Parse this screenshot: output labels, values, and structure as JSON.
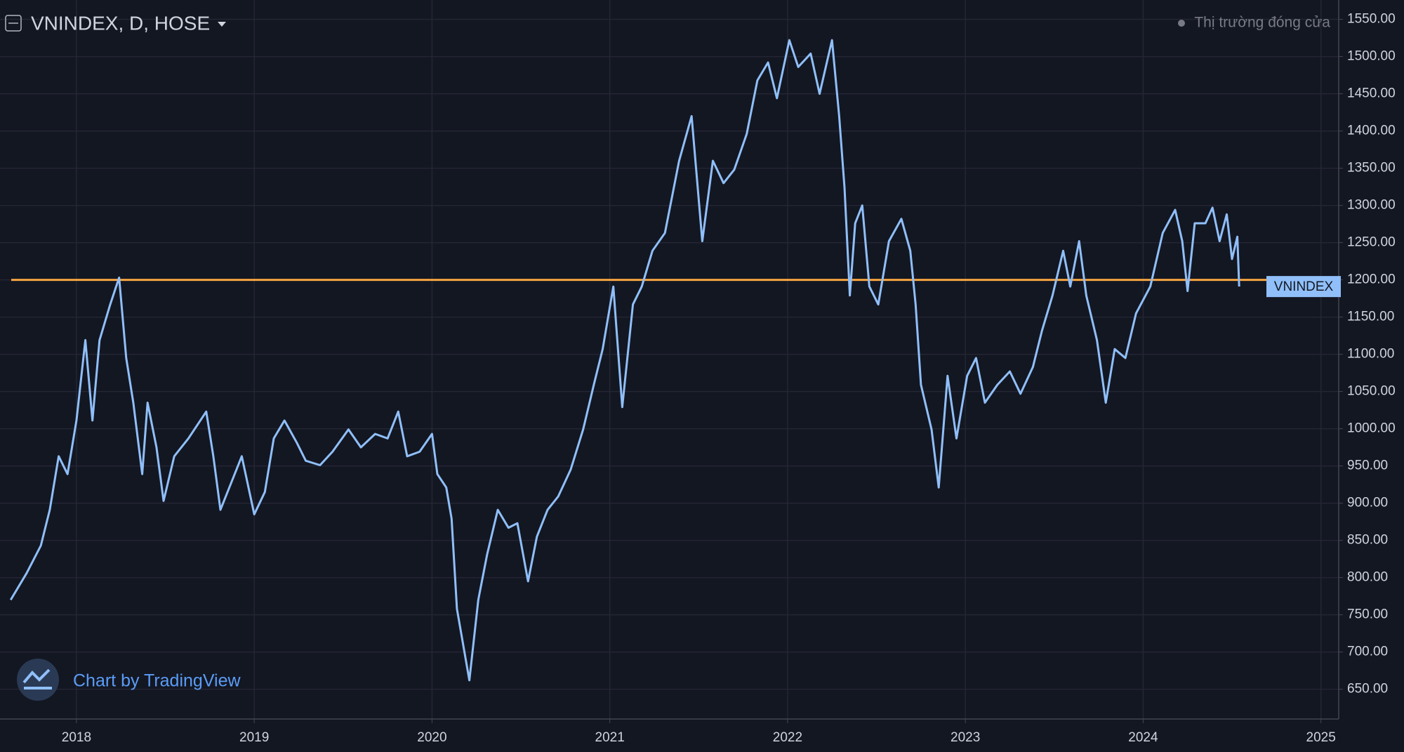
{
  "chart_data": {
    "type": "line",
    "title": "VNINDEX, D, HOSE",
    "status": "Thị trường đóng cửa",
    "watermark": "Chart by TradingView",
    "x": [
      2017.63,
      2017.72,
      2017.8,
      2017.85,
      2017.9,
      2017.95,
      2018.0,
      2018.05,
      2018.09,
      2018.13,
      2018.19,
      2018.24,
      2018.28,
      2018.32,
      2018.37,
      2018.4,
      2018.45,
      2018.49,
      2018.55,
      2018.63,
      2018.73,
      2018.77,
      2018.81,
      2018.87,
      2018.93,
      2019.0,
      2019.06,
      2019.11,
      2019.17,
      2019.24,
      2019.29,
      2019.37,
      2019.44,
      2019.53,
      2019.6,
      2019.68,
      2019.75,
      2019.81,
      2019.86,
      2019.93,
      2020.0,
      2020.03,
      2020.08,
      2020.11,
      2020.14,
      2020.21,
      2020.26,
      2020.31,
      2020.37,
      2020.43,
      2020.48,
      2020.54,
      2020.59,
      2020.65,
      2020.71,
      2020.78,
      2020.85,
      2020.91,
      2020.96,
      2021.02,
      2021.07,
      2021.13,
      2021.18,
      2021.24,
      2021.31,
      2021.39,
      2021.46,
      2021.52,
      2021.58,
      2021.64,
      2021.7,
      2021.77,
      2021.83,
      2021.89,
      2021.94,
      2022.01,
      2022.06,
      2022.13,
      2022.18,
      2022.25,
      2022.29,
      2022.32,
      2022.35,
      2022.38,
      2022.42,
      2022.46,
      2022.51,
      2022.57,
      2022.64,
      2022.69,
      2022.72,
      2022.75,
      2022.81,
      2022.85,
      2022.9,
      2022.95,
      2023.01,
      2023.06,
      2023.11,
      2023.18,
      2023.25,
      2023.31,
      2023.38,
      2023.43,
      2023.49,
      2023.55,
      2023.59,
      2023.64,
      2023.68,
      2023.74,
      2023.79,
      2023.84,
      2023.9,
      2023.96,
      2024.04,
      2024.11,
      2024.18,
      2024.22,
      2024.25,
      2024.29,
      2024.35,
      2024.39,
      2024.43,
      2024.47,
      2024.5,
      2024.53,
      2024.54
    ],
    "series": [
      {
        "name": "VNINDEX",
        "color": "#90bff9",
        "values": [
          770,
          806,
          843,
          891,
          963,
          939,
          1011,
          1119,
          1011,
          1119,
          1167,
          1203,
          1095,
          1035,
          939,
          1035,
          975,
          903,
          963,
          987,
          1023,
          963,
          891,
          927,
          963,
          885,
          915,
          987,
          1011,
          981,
          957,
          951,
          969,
          999,
          975,
          993,
          987,
          1023,
          963,
          969,
          993,
          939,
          921,
          879,
          758,
          662,
          770,
          831,
          891,
          867,
          873,
          795,
          855,
          891,
          909,
          945,
          999,
          1059,
          1107,
          1191,
          1029,
          1167,
          1191,
          1239,
          1263,
          1360,
          1420,
          1252,
          1360,
          1330,
          1348,
          1396,
          1468,
          1492,
          1444,
          1522,
          1486,
          1504,
          1450,
          1522,
          1420,
          1324,
          1179,
          1276,
          1300,
          1191,
          1167,
          1252,
          1282,
          1239,
          1167,
          1059,
          999,
          921,
          1071,
          987,
          1071,
          1095,
          1035,
          1059,
          1077,
          1047,
          1083,
          1131,
          1179,
          1239,
          1191,
          1252,
          1179,
          1119,
          1035,
          1107,
          1095,
          1155,
          1191,
          1263,
          1294,
          1252,
          1185,
          1276,
          1276,
          1297,
          1252,
          1288,
          1228,
          1258,
          1191
        ]
      }
    ],
    "xlim": [
      2017.57,
      2025.1
    ],
    "xticks": [
      2018,
      2019,
      2020,
      2021,
      2022,
      2023,
      2024,
      2025
    ],
    "ylim": [
      610,
      1576
    ],
    "yticks": [
      {
        "value": 650,
        "label": "650.00"
      },
      {
        "value": 700,
        "label": "700.00"
      },
      {
        "value": 750,
        "label": "750.00"
      },
      {
        "value": 800,
        "label": "800.00"
      },
      {
        "value": 850,
        "label": "850.00"
      },
      {
        "value": 900,
        "label": "900.00"
      },
      {
        "value": 950,
        "label": "950.00"
      },
      {
        "value": 1000,
        "label": "1000.00"
      },
      {
        "value": 1050,
        "label": "1050.00"
      },
      {
        "value": 1100,
        "label": "1100.00"
      },
      {
        "value": 1150,
        "label": "1150.00"
      },
      {
        "value": 1200,
        "label": "1200.00"
      },
      {
        "value": 1250,
        "label": "1250.00"
      },
      {
        "value": 1300,
        "label": "1300.00"
      },
      {
        "value": 1350,
        "label": "1350.00"
      },
      {
        "value": 1400,
        "label": "1400.00"
      },
      {
        "value": 1450,
        "label": "1450.00"
      },
      {
        "value": 1500,
        "label": "1500.00"
      },
      {
        "value": 1550,
        "label": "1550.00"
      }
    ],
    "grid": true,
    "hline": {
      "value": 1200,
      "color": "#f7a540"
    }
  }
}
